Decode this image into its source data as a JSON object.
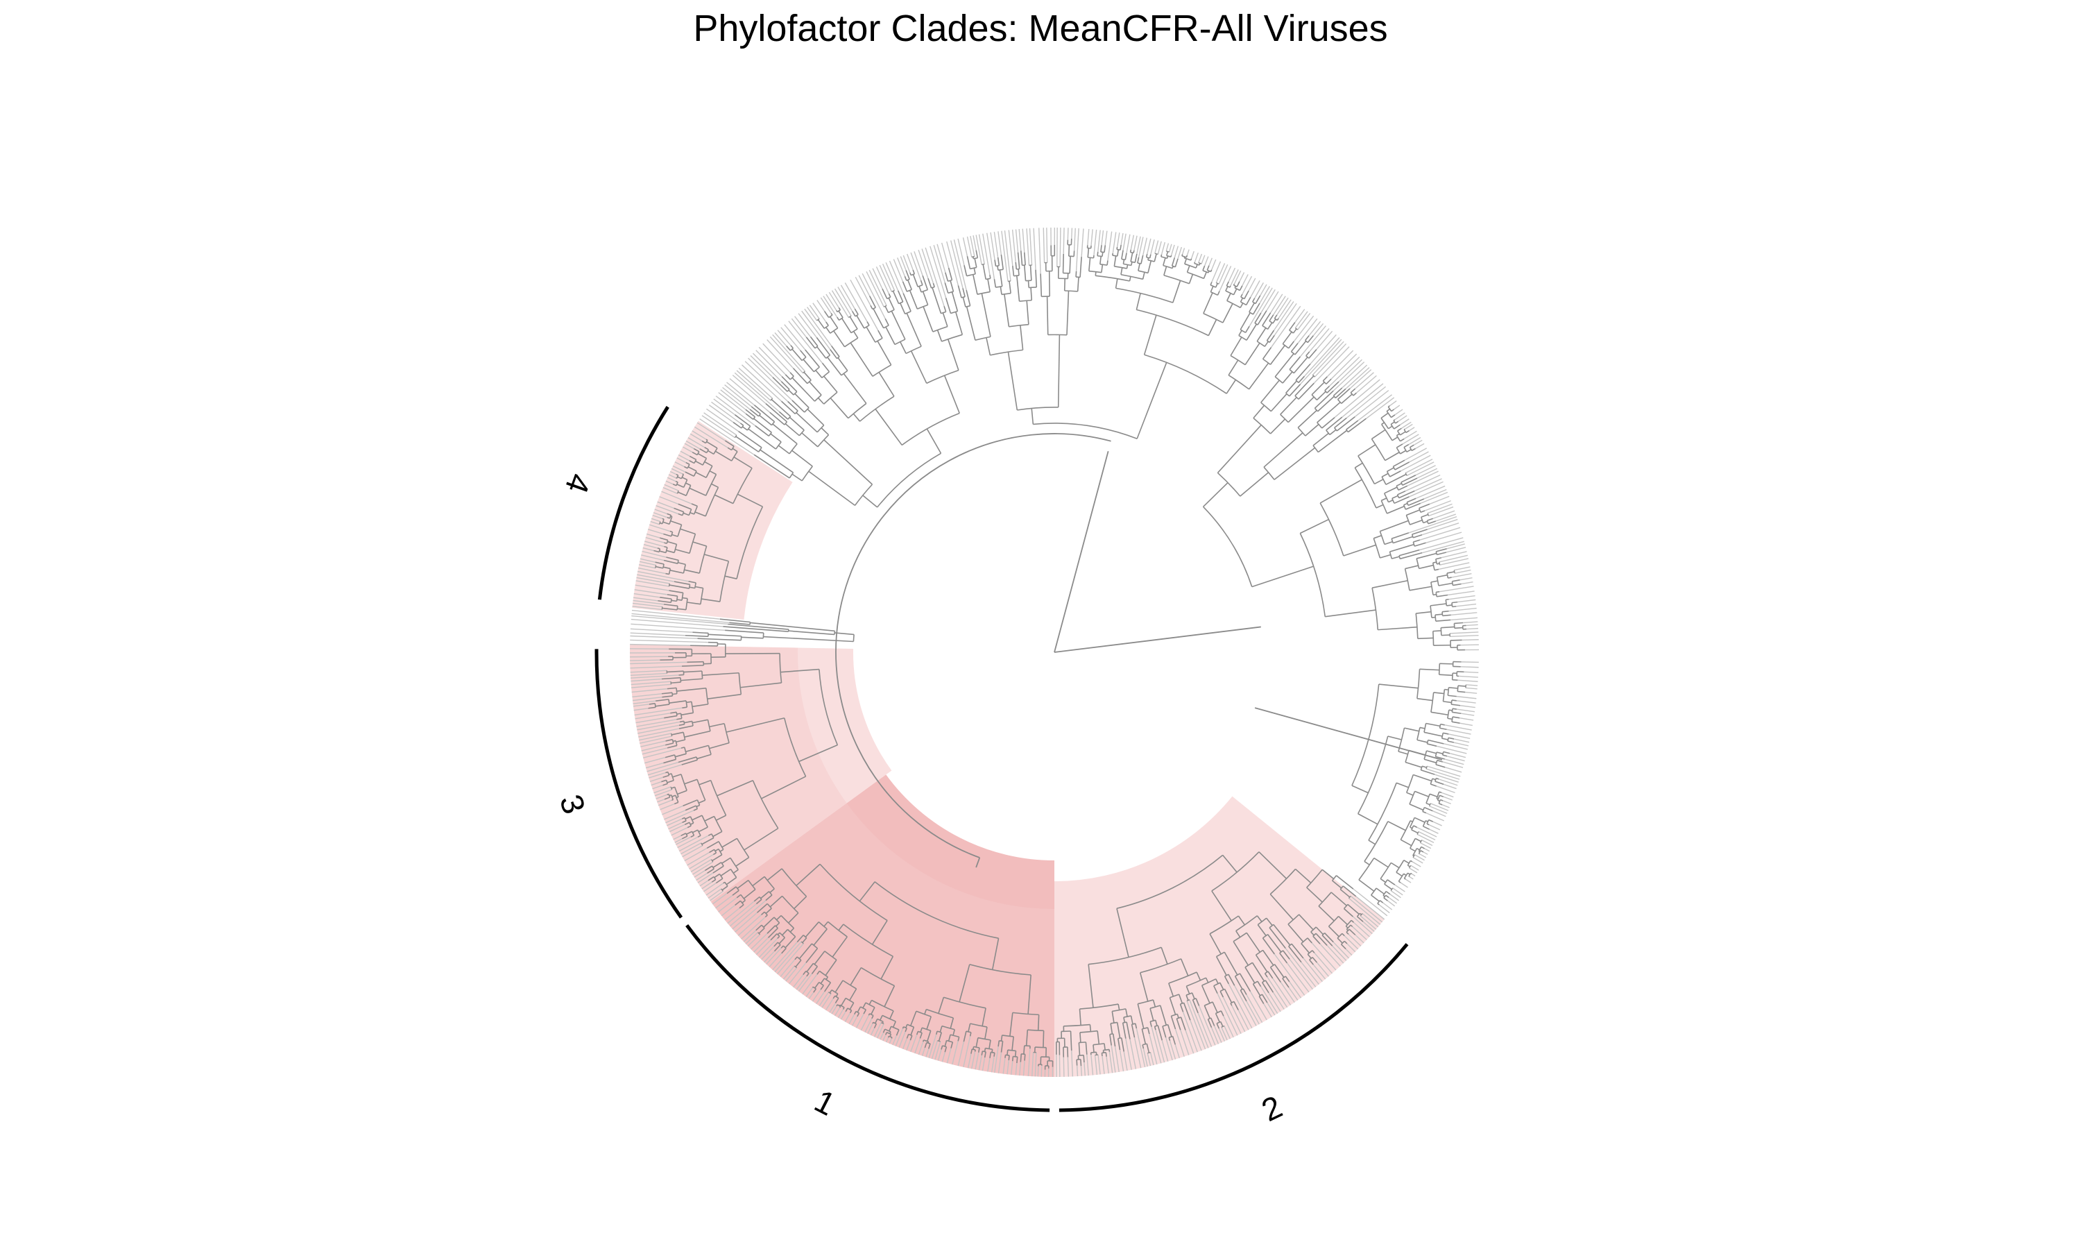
{
  "title": "Phylofactor Clades: MeanCFR-All Viruses",
  "colors": {
    "branch": "#8a8a8a",
    "tip": "#c4c4c4",
    "highlight": "#f5c9c9",
    "highlight_strong": "#f0b2b2",
    "arc": "#000000"
  },
  "clades": [
    {
      "id": 1,
      "label": "1",
      "start_deg": 180,
      "end_deg": 234,
      "shade": "highlight_strong"
    },
    {
      "id": 2,
      "label": "2",
      "start_deg": 129,
      "end_deg": 180,
      "shade": "highlight"
    },
    {
      "id": 3,
      "label": "3",
      "start_deg": 234,
      "end_deg": 271,
      "shade": "highlight"
    },
    {
      "id": 4,
      "label": "4",
      "start_deg": 276,
      "end_deg": 303,
      "shade": "highlight"
    }
  ]
}
